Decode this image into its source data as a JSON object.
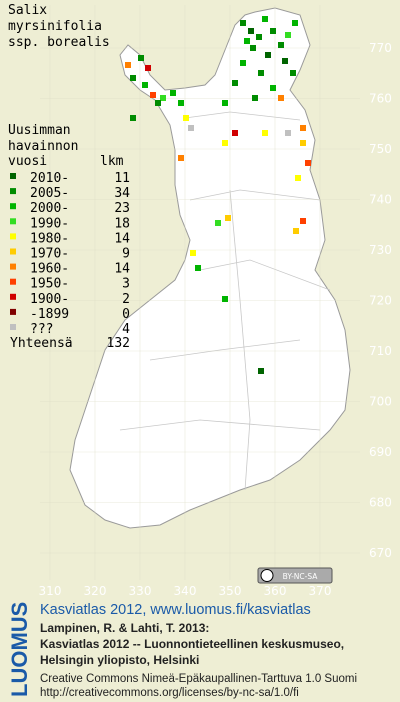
{
  "title": [
    "Salix",
    "myrsinifolia",
    "ssp. borealis"
  ],
  "legend": {
    "heading": [
      "Uusimman",
      "havainnon",
      "vuosi"
    ],
    "count_heading": "lkm",
    "items": [
      {
        "label": "2010-",
        "count": 11,
        "color": "#006400"
      },
      {
        "label": "2005-",
        "count": 34,
        "color": "#008c00"
      },
      {
        "label": "2000-",
        "count": 23,
        "color": "#00b400"
      },
      {
        "label": "1990-",
        "count": 18,
        "color": "#33dd22"
      },
      {
        "label": "1980-",
        "count": 14,
        "color": "#ffff00"
      },
      {
        "label": "1970-",
        "count": 9,
        "color": "#ffcc00"
      },
      {
        "label": "1960-",
        "count": 14,
        "color": "#ff8000"
      },
      {
        "label": "1950-",
        "count": 3,
        "color": "#ff4000"
      },
      {
        "label": "1900-",
        "count": 2,
        "color": "#d00000"
      },
      {
        "label": "-1899",
        "count": 0,
        "color": "#800000"
      },
      {
        "label": "???",
        "count": 4,
        "color": "#c0c0c0"
      }
    ],
    "total_label": "Yhteensä",
    "total": 132
  },
  "map": {
    "yticks": [
      770,
      760,
      750,
      740,
      730,
      720,
      710,
      700,
      690,
      680,
      670
    ],
    "xticks": [
      310,
      320,
      330,
      340,
      350,
      360,
      370
    ]
  },
  "license_badge": "BY-NC-SA",
  "footer": {
    "logo": "LUOMUS",
    "link": "Kasviatlas 2012, www.luomus.fi/kasviatlas",
    "citation": [
      "Lampinen, R. & Lahti, T. 2013:",
      "Kasviatlas 2012 -- Luonnontieteellinen keskusmuseo,",
      "Helsingin yliopisto, Helsinki"
    ],
    "license": [
      "Creative Commons Nimeä-Epäkaupallinen-Tarttuva 1.0 Suomi",
      "http://creativecommons.org/licenses/by-nc-sa/1.0/fi"
    ]
  }
}
